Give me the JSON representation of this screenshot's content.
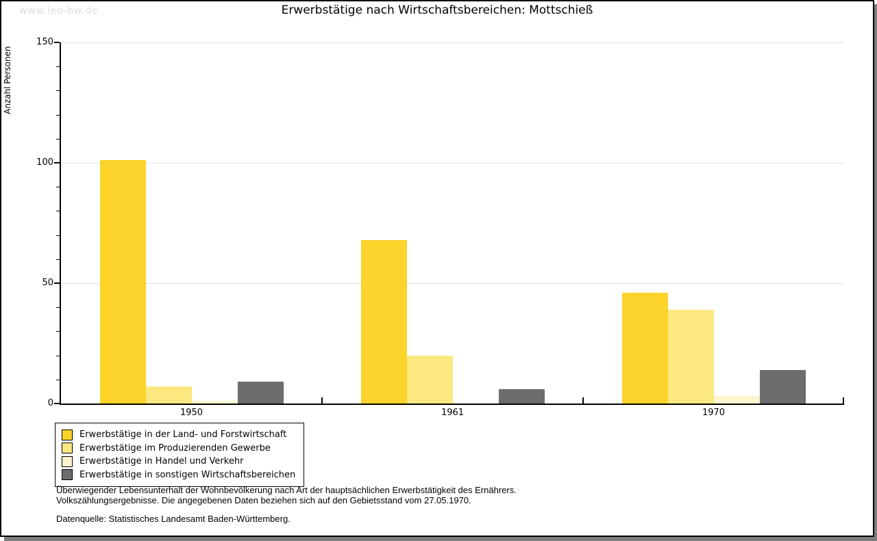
{
  "watermark": "www.leo-bw.de",
  "title": "Erwerbstätige nach Wirtschaftsbereichen: Mottschieß",
  "chart_data": {
    "type": "bar",
    "title": "Erwerbstätige nach Wirtschaftsbereichen: Mottschieß",
    "xlabel": "",
    "ylabel": "Anzahl Personen",
    "ylim": [
      0,
      150
    ],
    "yticks": [
      0,
      50,
      100,
      150
    ],
    "minor_tick_step": 10,
    "grid": "horizontal-at-50-100-150",
    "gridline_color": "#e2e2e2",
    "categories": [
      "1950",
      "1961",
      "1970"
    ],
    "series": [
      {
        "name": "Erwerbstätige in der Land- und Forstwirtschaft",
        "color": "#fcd32b",
        "values": [
          101,
          68,
          46
        ]
      },
      {
        "name": "Erwerbstätige im Produzierenden Gewerbe",
        "color": "#fbe881",
        "values": [
          7,
          20,
          39
        ]
      },
      {
        "name": "Erwerbstätige in Handel und Verkehr",
        "color": "#fcf5cd",
        "values": [
          1,
          0,
          3
        ]
      },
      {
        "name": "Erwerbstätige in sonstigen Wirtschaftsbereichen",
        "color": "#6c6c6c",
        "values": [
          9,
          6,
          14
        ]
      }
    ],
    "legend_position": "bottom-left"
  },
  "footnote": {
    "line1": "Überwiegender Lebensunterhalt der Wohnbevölkerung nach Art der hauptsächlichen Erwerbstätigkeit des Ernährers.",
    "line2": "Volkszählungsergebnisse. Die angegebenen Daten beziehen sich auf den Gebietsstand vom 27.05.1970.",
    "source": "Datenquelle: Statistisches Landesamt Baden-Württemberg."
  }
}
